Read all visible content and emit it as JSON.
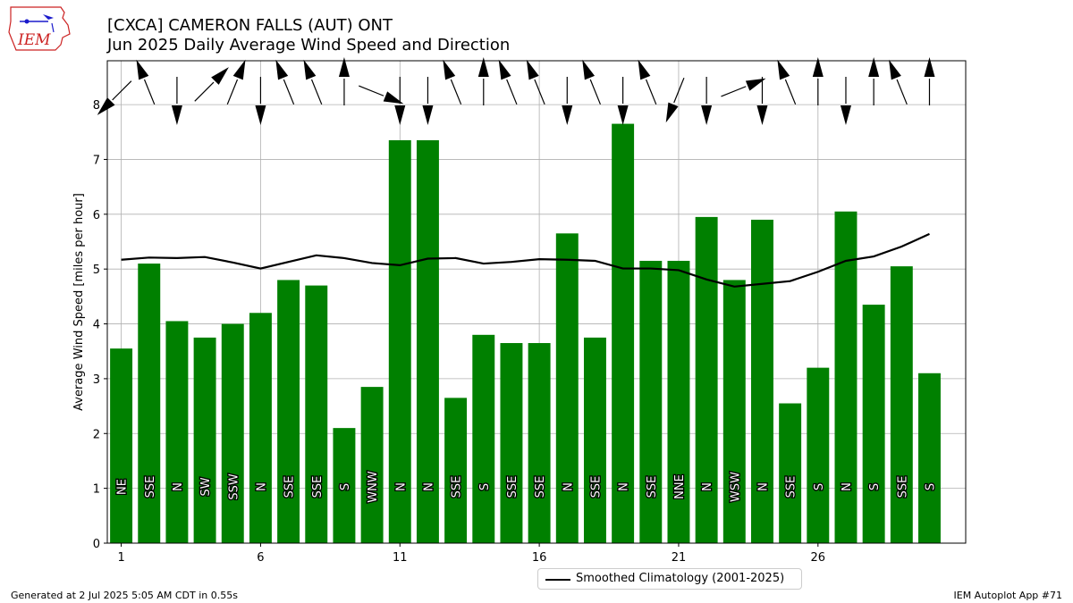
{
  "header": {
    "title_line1": "[CXCA] CAMERON FALLS (AUT)  ONT",
    "title_line2": "Jun 2025 Daily Average Wind Speed and Direction"
  },
  "logo": {
    "text": "IEM",
    "icon": "iem-logo"
  },
  "footer": {
    "left": "Generated at 2 Jul 2025 5:05 AM CDT in 0.55s",
    "right": "IEM Autoplot App #71"
  },
  "colors": {
    "bar": "#008000",
    "climo_line": "#000000",
    "grid": "#b0b0b0",
    "logo_red": "#cc2222",
    "logo_blue": "#1a1acc"
  },
  "chart_data": {
    "type": "bar",
    "title": "[CXCA] CAMERON FALLS (AUT)  ONT\nJun 2025 Daily Average Wind Speed and Direction",
    "xlabel": "",
    "ylabel": "Average Wind Speed [miles per hour]",
    "xlim": [
      0.5,
      31.3
    ],
    "ylim": [
      0,
      8.8
    ],
    "grid": true,
    "legend_position": "bottom-center",
    "x_ticks": [
      1,
      6,
      11,
      16,
      21,
      26
    ],
    "y_ticks": [
      0,
      1,
      2,
      3,
      4,
      5,
      6,
      7,
      8
    ],
    "days": [
      1,
      2,
      3,
      4,
      5,
      6,
      7,
      8,
      9,
      10,
      11,
      12,
      13,
      14,
      15,
      16,
      17,
      18,
      19,
      20,
      21,
      22,
      23,
      24,
      25,
      26,
      27,
      28,
      29,
      30
    ],
    "series": [
      {
        "name": "Daily Average Wind Speed",
        "values": [
          3.55,
          5.1,
          4.05,
          3.75,
          4.0,
          4.2,
          4.8,
          4.7,
          2.1,
          2.85,
          7.35,
          7.35,
          2.65,
          3.8,
          3.65,
          3.65,
          5.65,
          3.75,
          7.65,
          5.15,
          5.15,
          5.95,
          4.8,
          5.9,
          2.55,
          3.2,
          6.05,
          4.35,
          5.05,
          3.1
        ]
      },
      {
        "name": "Smoothed Climatology (2001-2025)",
        "values": [
          5.17,
          5.21,
          5.2,
          5.22,
          5.12,
          5.01,
          5.13,
          5.25,
          5.2,
          5.11,
          5.07,
          5.19,
          5.2,
          5.1,
          5.13,
          5.18,
          5.17,
          5.15,
          5.01,
          5.01,
          4.98,
          4.81,
          4.68,
          4.73,
          4.78,
          4.95,
          5.15,
          5.23,
          5.41,
          5.64
        ]
      }
    ],
    "direction_labels": [
      "NE",
      "SSE",
      "N",
      "SW",
      "SSW",
      "N",
      "SSE",
      "SSE",
      "S",
      "WNW",
      "N",
      "N",
      "SSE",
      "S",
      "SSE",
      "SSE",
      "N",
      "SSE",
      "N",
      "SSE",
      "NNE",
      "N",
      "WSW",
      "N",
      "SSE",
      "S",
      "N",
      "S",
      "SSE",
      "S"
    ],
    "direction_degrees": [
      45,
      158,
      0,
      225,
      202,
      0,
      158,
      158,
      180,
      292,
      0,
      0,
      158,
      180,
      158,
      158,
      0,
      158,
      0,
      158,
      22,
      0,
      248,
      0,
      158,
      180,
      0,
      180,
      158,
      180
    ]
  }
}
